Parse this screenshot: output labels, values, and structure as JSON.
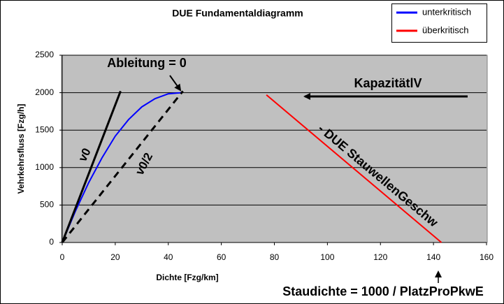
{
  "chart_data": {
    "type": "line",
    "title": "DUE Fundamentaldiagramm",
    "x_label": "Dichte [Fzg/km]",
    "y_label": "Vehrkehrsfluss [Fzg/h]",
    "xlim": [
      0,
      160
    ],
    "xticks": [
      0,
      20,
      40,
      60,
      80,
      100,
      120,
      140,
      160
    ],
    "ylim": [
      0,
      2500
    ],
    "yticks": [
      0,
      500,
      1000,
      1500,
      2000,
      2500
    ],
    "grid": true,
    "series": [
      {
        "name": "unterkritisch",
        "color": "#0000ff",
        "x": [
          0,
          5,
          10,
          15,
          20,
          25,
          30,
          35,
          40,
          45
        ],
        "values": [
          0,
          420,
          800,
          1130,
          1420,
          1640,
          1810,
          1920,
          1985,
          2000
        ]
      },
      {
        "name": "überkritisch",
        "color": "#ff0000",
        "x": [
          77,
          143
        ],
        "values": [
          1970,
          0
        ]
      }
    ],
    "lines": [
      {
        "label": "v0",
        "x": [
          0,
          22
        ],
        "values": [
          0,
          2020
        ]
      },
      {
        "label": "v0/2",
        "x": [
          0,
          45.5
        ],
        "values": [
          0,
          2020
        ]
      }
    ],
    "annotations": [
      "Ableitung = 0",
      "KapazitätlV",
      "- DUE StauwellenGeschw",
      "Staudichte = 1000 / PlatzProPkwE"
    ]
  }
}
